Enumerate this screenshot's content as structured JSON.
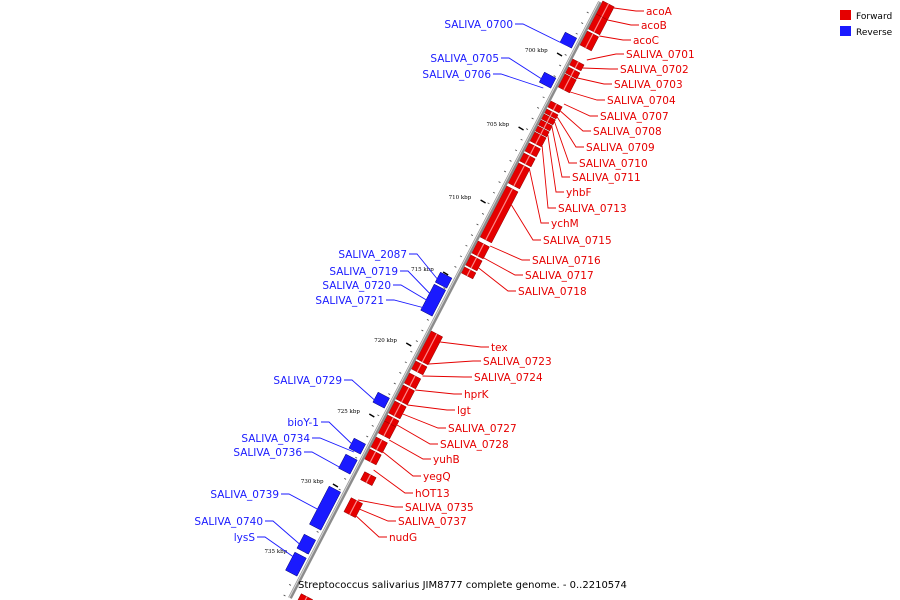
{
  "caption": "Streptococcus salivarius JIM8777 complete genome. - 0..2210574",
  "caption_italic": "Streptococcus salivarius JIM8777",
  "legend": [
    {
      "label": "Forward",
      "color": "#e50000"
    },
    {
      "label": "Reverse",
      "color": "#1a1aff"
    }
  ],
  "ticks": [
    "700 kbp",
    "705 kbp",
    "710 kbp",
    "715 kbp",
    "720 kbp",
    "725 kbp",
    "730 kbp",
    "735 kbp"
  ],
  "forward_genes": [
    "acoA",
    "acoB",
    "acoC",
    "SALIVA_0701",
    "SALIVA_0702",
    "SALIVA_0703",
    "SALIVA_0704",
    "SALIVA_0707",
    "SALIVA_0708",
    "SALIVA_0709",
    "SALIVA_0710",
    "SALIVA_0711",
    "yhbF",
    "SALIVA_0713",
    "ychM",
    "SALIVA_0715",
    "SALIVA_0716",
    "SALIVA_0717",
    "SALIVA_0718",
    "tex",
    "SALIVA_0723",
    "SALIVA_0724",
    "hprK",
    "lgt",
    "SALIVA_0727",
    "SALIVA_0728",
    "yuhB",
    "yegQ",
    "hOT13",
    "SALIVA_0735",
    "SALIVA_0737",
    "nudG"
  ],
  "reverse_genes": [
    "SALIVA_0700",
    "SALIVA_0705",
    "SALIVA_0706",
    "SALIVA_2087",
    "SALIVA_0719",
    "SALIVA_0720",
    "SALIVA_0721",
    "SALIVA_0729",
    "bioY-1",
    "SALIVA_0734",
    "SALIVA_0736",
    "SALIVA_0739",
    "SALIVA_0740",
    "lysS"
  ]
}
